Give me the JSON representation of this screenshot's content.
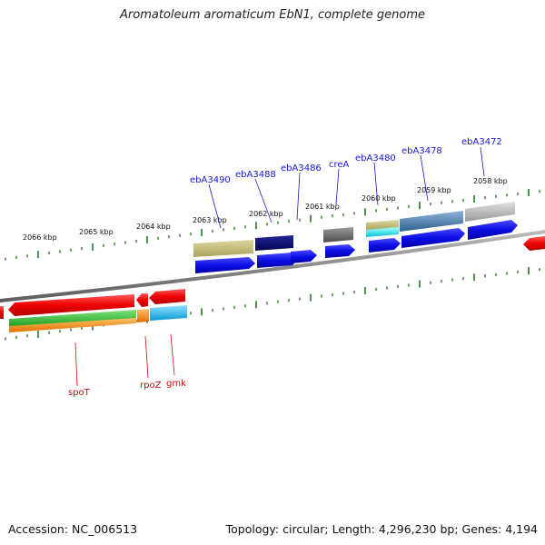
{
  "title": "Aromatoleum aromaticum EbN1, complete genome",
  "footer": {
    "accession": "Accession: NC_006513",
    "stats": "Topology: circular; Length: 4,296,230 bp; Genes: 4,194"
  },
  "colors": {
    "backbone": "#8a8a8a",
    "forward_label": "#1a1acc",
    "reverse_label": "#cc1111",
    "tick": "#1f7a1f",
    "cds": "#1010e0",
    "rna_red": "#ff1a1a"
  },
  "scale_labels": [
    {
      "text": "2066 kbp"
    },
    {
      "text": "2065 kbp"
    },
    {
      "text": "2064 kbp"
    },
    {
      "text": "2063 kbp"
    },
    {
      "text": "2062 kbp"
    },
    {
      "text": "2061 kbp"
    },
    {
      "text": "2060 kbp"
    },
    {
      "text": "2059 kbp"
    },
    {
      "text": "2058 kbp"
    }
  ],
  "forward_gene_labels": [
    {
      "text": "ebA3490"
    },
    {
      "text": "ebA3488"
    },
    {
      "text": "ebA3486"
    },
    {
      "text": "creA"
    },
    {
      "text": "ebA3480"
    },
    {
      "text": "ebA3478"
    },
    {
      "text": "ebA3472"
    }
  ],
  "reverse_gene_labels": [
    {
      "text": "spoT"
    },
    {
      "text": "rpoZ"
    },
    {
      "text": "gmk"
    }
  ]
}
